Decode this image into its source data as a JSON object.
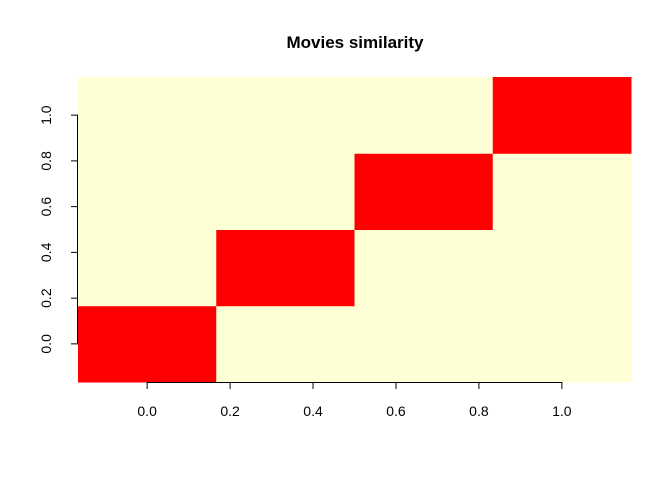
{
  "chart_data": {
    "type": "heatmap",
    "title": "Movies similarity",
    "xlabel": "",
    "ylabel": "",
    "rows": 4,
    "cols": 4,
    "values": [
      [
        1,
        0,
        0,
        0
      ],
      [
        0,
        1,
        0,
        0
      ],
      [
        0,
        0,
        1,
        0
      ],
      [
        0,
        0,
        0,
        1
      ]
    ],
    "colors": {
      "low": "#FFFFD5",
      "high": "#FF0000"
    },
    "x_ticks": [
      "0.0",
      "0.2",
      "0.4",
      "0.6",
      "0.8",
      "1.0"
    ],
    "y_ticks": [
      "0.0",
      "0.2",
      "0.4",
      "0.6",
      "0.8",
      "1.0"
    ],
    "xlim": [
      -0.1667,
      1.1667
    ],
    "ylim": [
      -0.1667,
      1.1667
    ],
    "grid": false,
    "legend": "none"
  }
}
